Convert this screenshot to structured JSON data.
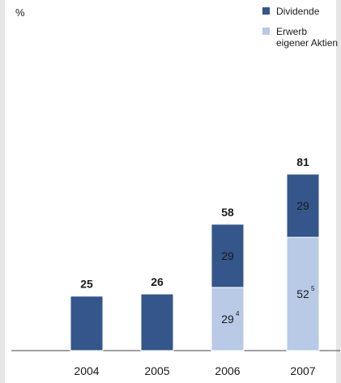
{
  "chart_data": {
    "type": "bar",
    "stacked": true,
    "unit_label": "%",
    "categories": [
      "2004",
      "2005",
      "2006",
      "2007"
    ],
    "series": [
      {
        "name": "Erwerb eigener Aktien",
        "color": "#b8cae6",
        "values": [
          0,
          0,
          29,
          52
        ],
        "value_labels": [
          "",
          "",
          "29",
          "52"
        ],
        "footnotes": [
          "",
          "",
          "4",
          "5"
        ]
      },
      {
        "name": "Dividende",
        "color": "#34568a",
        "values": [
          25,
          26,
          29,
          29
        ],
        "value_labels": [
          "",
          "",
          "29",
          "29"
        ],
        "footnotes": [
          "",
          "",
          "",
          ""
        ]
      }
    ],
    "totals": [
      "25",
      "26",
      "58",
      "81"
    ],
    "legend": {
      "position": "top-right",
      "items": [
        {
          "lines": [
            "Dividende"
          ],
          "color": "#34568a"
        },
        {
          "lines": [
            "Erwerb",
            "eigener Aktien"
          ],
          "color": "#b8cae6"
        }
      ]
    },
    "ylim": [
      0,
      81
    ]
  }
}
